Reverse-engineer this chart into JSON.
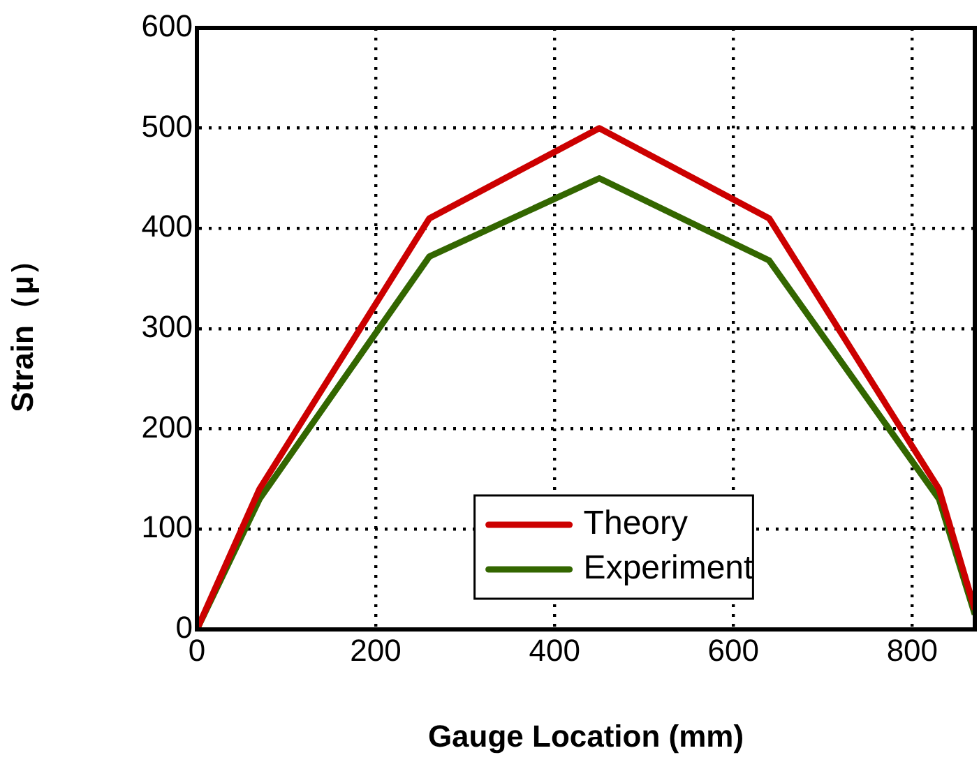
{
  "chart_data": {
    "type": "line",
    "xlabel": "Gauge Location (mm)",
    "ylabel": "Strain（μ）",
    "x": [
      0,
      70,
      260,
      450,
      640,
      830,
      870
    ],
    "series": [
      {
        "name": "Theory",
        "color": "#cc0000",
        "values": [
          0,
          140,
          410,
          500,
          410,
          140,
          20
        ]
      },
      {
        "name": "Experiment",
        "color": "#336600",
        "values": [
          0,
          130,
          372,
          450,
          368,
          130,
          15
        ]
      }
    ],
    "xlim": [
      0,
      870
    ],
    "xticks": [
      0,
      200,
      400,
      600,
      800
    ],
    "ylim": [
      0,
      600
    ],
    "yticks": [
      0,
      100,
      200,
      300,
      400,
      500,
      600
    ],
    "grid": true,
    "legend": "bottom",
    "marker": "none",
    "line_style": "solid"
  }
}
